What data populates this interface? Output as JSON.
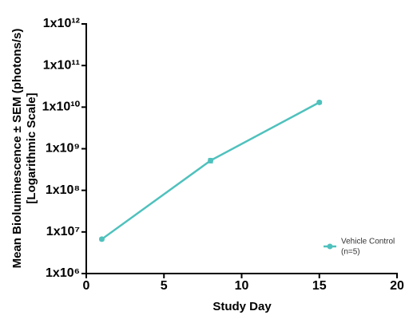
{
  "chart_data": {
    "type": "line",
    "ylabel": [
      "Mean Bioluminescence ± SEM (photons/s)",
      "[Logarithmic Scale]"
    ],
    "xlabel": "Study Day",
    "x": [
      1,
      8,
      15
    ],
    "series": [
      {
        "name": "Vehicle Control",
        "note": "(n=5)",
        "color": "#4fc1bd",
        "values": [
          6700000,
          520000000,
          13000000000
        ],
        "errors": [
          500000,
          60000000,
          1000000000
        ]
      }
    ],
    "xlim": [
      0,
      20
    ],
    "xticks": [
      0,
      5,
      10,
      15,
      20
    ],
    "ylim": [
      1000000,
      1000000000000
    ],
    "log_y": true,
    "yticks": [
      {
        "value": 1000000,
        "label": "1x10⁶"
      },
      {
        "value": 10000000,
        "label": "1x10⁷"
      },
      {
        "value": 100000000,
        "label": "1x10⁸"
      },
      {
        "value": 1000000000,
        "label": "1x10⁹"
      },
      {
        "value": 10000000000,
        "label": "1x10¹⁰"
      },
      {
        "value": 100000000000,
        "label": "1x10¹¹"
      },
      {
        "value": 1000000000000,
        "label": "1x10¹²"
      }
    ],
    "legend": "lower right",
    "grid": false
  }
}
